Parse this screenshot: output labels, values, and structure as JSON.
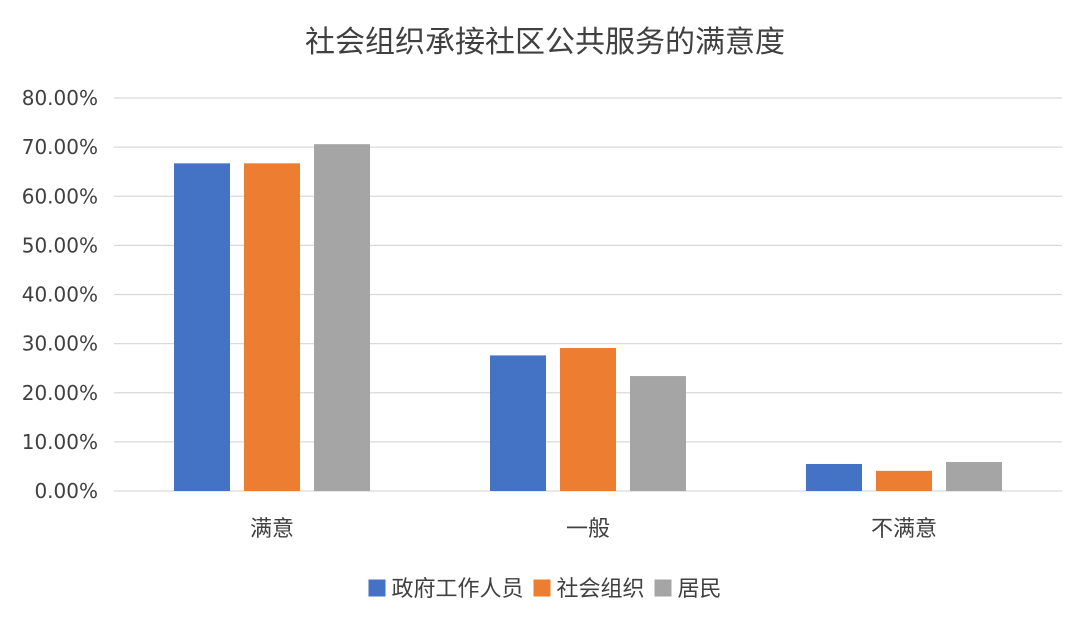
{
  "chart_data": {
    "type": "bar",
    "title": "社会组织承接社区公共服务的满意度",
    "categories": [
      "满意",
      "一般",
      "不满意"
    ],
    "series": [
      {
        "name": "政府工作人员",
        "values": [
          66.7,
          27.6,
          5.5
        ],
        "color": "#4472C4"
      },
      {
        "name": "社会组织",
        "values": [
          66.7,
          29.1,
          4.1
        ],
        "color": "#ED7D31"
      },
      {
        "name": "居民",
        "values": [
          70.6,
          23.4,
          5.9
        ],
        "color": "#A5A5A5"
      }
    ],
    "ylim": [
      0,
      80
    ],
    "yticks": [
      "0.00%",
      "10.00%",
      "20.00%",
      "30.00%",
      "40.00%",
      "50.00%",
      "60.00%",
      "70.00%",
      "80.00%"
    ],
    "xlabel": "",
    "ylabel": "",
    "grid": true,
    "legend_position": "bottom"
  }
}
